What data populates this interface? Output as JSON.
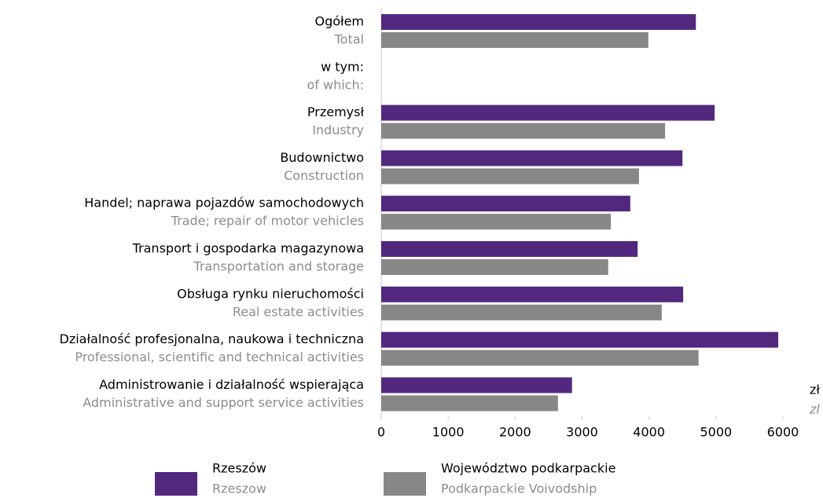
{
  "chart_data": {
    "type": "barh",
    "categories": [
      "Ogółem",
      "w tym:",
      "Przemysł",
      "Budownictwo",
      "Handel; naprawa pojazdów samochodowych",
      "Transport i gospodarka magazynowa",
      "Obsługa rynku nieruchomości",
      "Działalność profesjonalna, naukowa i techniczna",
      "Administrowanie i działalność wspierająca"
    ],
    "categories_en": [
      "Total",
      "of which:",
      "Industry",
      "Construction",
      "Trade; repair of motor vehicles",
      "Transportation and storage",
      "Real estate activities",
      "Professional, scientific and technical activities",
      "Administrative and support service activities"
    ],
    "series": [
      {
        "name": "Rzeszów",
        "name_en": "Rzeszow",
        "color": "#52287f",
        "values": [
          4700,
          null,
          4980,
          4500,
          3720,
          3830,
          4510,
          5930,
          2850
        ]
      },
      {
        "name": "Województwo podkarpackie",
        "name_en": "Podkarpackie Voivodship",
        "color": "#878787",
        "values": [
          3990,
          null,
          4240,
          3850,
          3430,
          3390,
          4190,
          4740,
          2640
        ]
      }
    ],
    "xlim": [
      0,
      6000
    ],
    "xticks": [
      0,
      1000,
      2000,
      3000,
      4000,
      5000,
      6000
    ],
    "unit": "zł",
    "unit_en": "zl"
  }
}
